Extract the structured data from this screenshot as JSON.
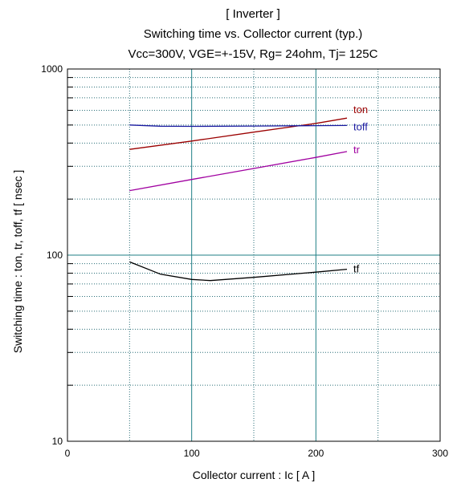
{
  "chart_data": {
    "type": "line",
    "title_lines": [
      "[ Inverter ]",
      "Switching time  vs.  Collector current  (typ.)",
      "Vcc=300V, VGE=+-15V, Rg= 24ohm, Tj= 125C"
    ],
    "xlabel": "Collector current  :  Ic  [ A ]",
    "ylabel": "Switching time  :  ton, tr, toff, tf  [ nsec ]",
    "xlim": [
      0,
      300
    ],
    "ylim": [
      10,
      1000
    ],
    "yscale": "log",
    "grid": true,
    "x_ticks": [
      "0",
      "100",
      "200",
      "300"
    ],
    "y_ticks": [
      "10",
      "100",
      "1000"
    ],
    "series": [
      {
        "name": "ton",
        "color": "#9b0000",
        "x": [
          50,
          100,
          150,
          200,
          225
        ],
        "y": [
          370,
          410,
          458,
          510,
          545
        ]
      },
      {
        "name": "toff",
        "color": "#1a1aa0",
        "x": [
          50,
          75,
          100,
          150,
          200,
          225
        ],
        "y": [
          500,
          493,
          492,
          494,
          496,
          497
        ]
      },
      {
        "name": "tr",
        "color": "#a000a0",
        "x": [
          50,
          100,
          150,
          200,
          225
        ],
        "y": [
          222,
          255,
          292,
          335,
          360
        ]
      },
      {
        "name": "tf",
        "color": "#000000",
        "x": [
          50,
          75,
          100,
          115,
          150,
          200,
          225
        ],
        "y": [
          92,
          79,
          74,
          73,
          76,
          81,
          84
        ]
      }
    ]
  }
}
